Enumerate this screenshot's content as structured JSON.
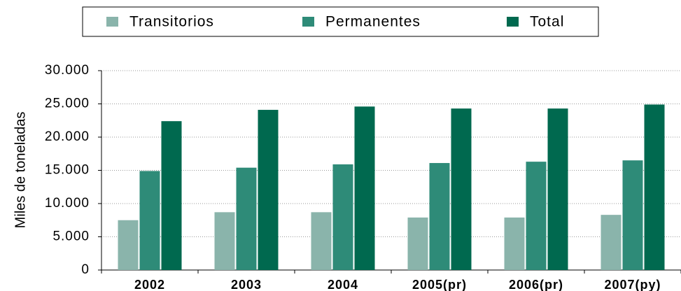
{
  "chart_data": {
    "type": "bar",
    "y_label": "Miles de toneladas",
    "categories": [
      "2002",
      "2003",
      "2004",
      "2005(pr)",
      "2006(pr)",
      "2007(py)"
    ],
    "series": [
      {
        "name": "Transitorios",
        "color": "#8ab4ab",
        "values": [
          7500,
          8700,
          8700,
          7900,
          7900,
          8300
        ]
      },
      {
        "name": "Permanentes",
        "color": "#2e8b78",
        "values": [
          14900,
          15400,
          15900,
          16100,
          16300,
          16500
        ]
      },
      {
        "name": "Total",
        "color": "#00694f",
        "values": [
          22400,
          24100,
          24600,
          24300,
          24300,
          24900
        ]
      }
    ],
    "ylim": [
      0,
      30000
    ],
    "yticks": [
      0,
      {
        "value": 5000,
        "label": "5.000"
      },
      {
        "value": 10000,
        "label": "10.000"
      },
      {
        "value": 15000,
        "label": "15.000"
      },
      {
        "value": 20000,
        "label": "20.000"
      },
      {
        "value": 25000,
        "label": "25.000"
      },
      {
        "value": 30000,
        "label": "30.000"
      }
    ],
    "grid": true,
    "legend": "top"
  }
}
